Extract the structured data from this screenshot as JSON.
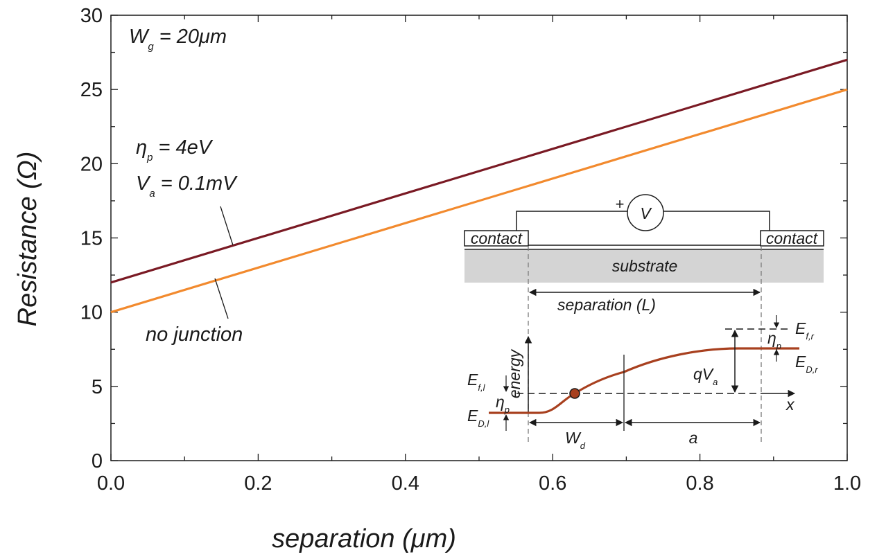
{
  "chart_data": {
    "type": "line",
    "xlabel": "separation (μm)",
    "ylabel": "Resistance (Ω)",
    "xlim": [
      0.0,
      1.0
    ],
    "ylim": [
      0,
      30
    ],
    "x_ticks": [
      "0.0",
      "0.2",
      "0.4",
      "0.6",
      "0.8",
      "1.0"
    ],
    "y_ticks": [
      "0",
      "5",
      "10",
      "15",
      "20",
      "25",
      "30"
    ],
    "grid": false,
    "series": [
      {
        "x": [
          0.0,
          1.0
        ],
        "y": [
          12.0,
          27.0
        ],
        "color": "#7a1a24"
      },
      {
        "name": "no junction",
        "x": [
          0.0,
          1.0
        ],
        "y": [
          10.0,
          25.0
        ],
        "color": "#f28a2e"
      }
    ],
    "annotations": {
      "wg": {
        "main": "W",
        "sub": "g",
        "rest": " = 20μm"
      },
      "eta": {
        "main": "η",
        "sub": "p",
        "rest": " = 4eV"
      },
      "va": {
        "main": "V",
        "sub": "a",
        "rest": " = 0.1mV"
      },
      "no_junction": "no junction"
    },
    "inset": {
      "voltmeter": "V",
      "plus": "+",
      "contact_left": "contact",
      "contact_right": "contact",
      "substrate": "substrate",
      "separation": "separation (L)",
      "energy": "energy",
      "x": "x",
      "efl": {
        "main": "E",
        "sub": "f,l"
      },
      "edl": {
        "main": "E",
        "sub": "D,l"
      },
      "efr": {
        "main": "E",
        "sub": "f,r"
      },
      "edr": {
        "main": "E",
        "sub": "D,r"
      },
      "eta_left": {
        "main": "η",
        "sub": "p"
      },
      "eta_right": {
        "main": "η",
        "sub": "p"
      },
      "qva": {
        "main": "qV",
        "sub": "a"
      },
      "wd": {
        "main": "W",
        "sub": "d"
      },
      "a": "a"
    }
  }
}
